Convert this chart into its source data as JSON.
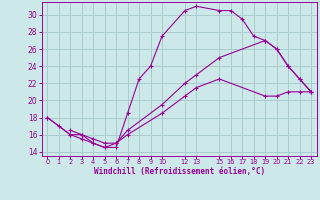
{
  "bg_color": "#cce8e8",
  "grid_color": "#aacccc",
  "line_color": "#990099",
  "xlabel": "Windchill (Refroidissement éolien,°C)",
  "xlim": [
    -0.5,
    23.5
  ],
  "ylim": [
    13.5,
    31.5
  ],
  "yticks": [
    14,
    16,
    18,
    20,
    22,
    24,
    26,
    28,
    30
  ],
  "xtick_positions": [
    0,
    1,
    2,
    3,
    4,
    5,
    6,
    7,
    8,
    9,
    10,
    12,
    13,
    15,
    16,
    17,
    18,
    19,
    20,
    21,
    22,
    23
  ],
  "xtick_labels": [
    "0",
    "1",
    "2",
    "3",
    "4",
    "5",
    "6",
    "7",
    "8",
    "9",
    "10",
    "12",
    "13",
    "15",
    "16",
    "17",
    "18",
    "19",
    "20",
    "21",
    "22",
    "23"
  ],
  "line1_x": [
    0,
    1,
    2,
    3,
    4,
    5,
    6,
    7,
    8,
    9,
    10,
    12,
    13,
    15,
    16,
    17,
    18,
    19,
    20,
    21,
    22,
    23
  ],
  "line1_y": [
    18,
    17,
    16,
    16,
    15,
    14.5,
    14.5,
    18.5,
    22.5,
    24,
    27.5,
    30.5,
    31,
    30.5,
    30.5,
    29.5,
    27.5,
    27,
    26,
    24,
    22.5,
    21
  ],
  "line2_x": [
    0,
    2,
    3,
    4,
    5,
    6,
    7,
    10,
    12,
    13,
    15,
    19,
    20,
    21,
    22,
    23
  ],
  "line2_y": [
    18,
    16,
    15.5,
    15,
    14.5,
    15,
    16.5,
    19.5,
    22,
    23,
    25,
    27,
    26,
    24,
    22.5,
    21
  ],
  "line3_x": [
    2,
    3,
    4,
    5,
    6,
    7,
    10,
    12,
    13,
    15,
    19,
    20,
    21,
    22,
    23
  ],
  "line3_y": [
    16.5,
    16,
    15.5,
    15,
    15,
    16,
    18.5,
    20.5,
    21.5,
    22.5,
    20.5,
    20.5,
    21,
    21,
    21
  ]
}
